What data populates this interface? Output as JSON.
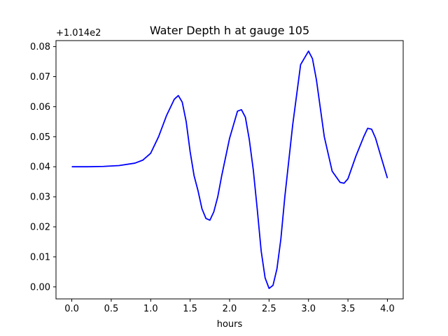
{
  "chart_data": {
    "type": "line",
    "title": "Water Depth h at gauge 105",
    "xlabel": "hours",
    "ylabel": "",
    "y_offset_label": "+1.014e2",
    "xlim": [
      -0.2,
      4.2
    ],
    "ylim": [
      -0.004,
      0.082
    ],
    "grid": false,
    "x_ticks": [
      0.0,
      0.5,
      1.0,
      1.5,
      2.0,
      2.5,
      3.0,
      3.5,
      4.0
    ],
    "x_tick_labels": [
      "0.0",
      "0.5",
      "1.0",
      "1.5",
      "2.0",
      "2.5",
      "3.0",
      "3.5",
      "4.0"
    ],
    "y_ticks": [
      0.0,
      0.01,
      0.02,
      0.03,
      0.04,
      0.05,
      0.06,
      0.07,
      0.08
    ],
    "y_tick_labels": [
      "0.00",
      "0.01",
      "0.02",
      "0.03",
      "0.04",
      "0.05",
      "0.06",
      "0.07",
      "0.08"
    ],
    "series": [
      {
        "color": "#0000ff",
        "x": [
          0.0,
          0.2,
          0.4,
          0.6,
          0.8,
          0.9,
          1.0,
          1.1,
          1.2,
          1.3,
          1.35,
          1.4,
          1.45,
          1.5,
          1.55,
          1.6,
          1.65,
          1.7,
          1.75,
          1.8,
          1.85,
          1.9,
          2.0,
          2.1,
          2.15,
          2.2,
          2.25,
          2.3,
          2.35,
          2.4,
          2.45,
          2.5,
          2.55,
          2.6,
          2.65,
          2.7,
          2.8,
          2.9,
          3.0,
          3.05,
          3.1,
          3.2,
          3.3,
          3.4,
          3.45,
          3.5,
          3.6,
          3.7,
          3.75,
          3.8,
          3.85,
          3.9,
          4.0
        ],
        "y": [
          0.04,
          0.04,
          0.0401,
          0.0404,
          0.0412,
          0.0422,
          0.0445,
          0.05,
          0.057,
          0.0625,
          0.0637,
          0.0615,
          0.055,
          0.045,
          0.037,
          0.032,
          0.026,
          0.0228,
          0.0222,
          0.025,
          0.03,
          0.037,
          0.0495,
          0.0585,
          0.059,
          0.0565,
          0.049,
          0.039,
          0.026,
          0.012,
          0.003,
          -0.0005,
          0.0005,
          0.006,
          0.016,
          0.03,
          0.054,
          0.074,
          0.0785,
          0.076,
          0.069,
          0.05,
          0.0385,
          0.0348,
          0.0345,
          0.036,
          0.0435,
          0.05,
          0.0528,
          0.0525,
          0.0495,
          0.045,
          0.0362
        ]
      }
    ]
  }
}
